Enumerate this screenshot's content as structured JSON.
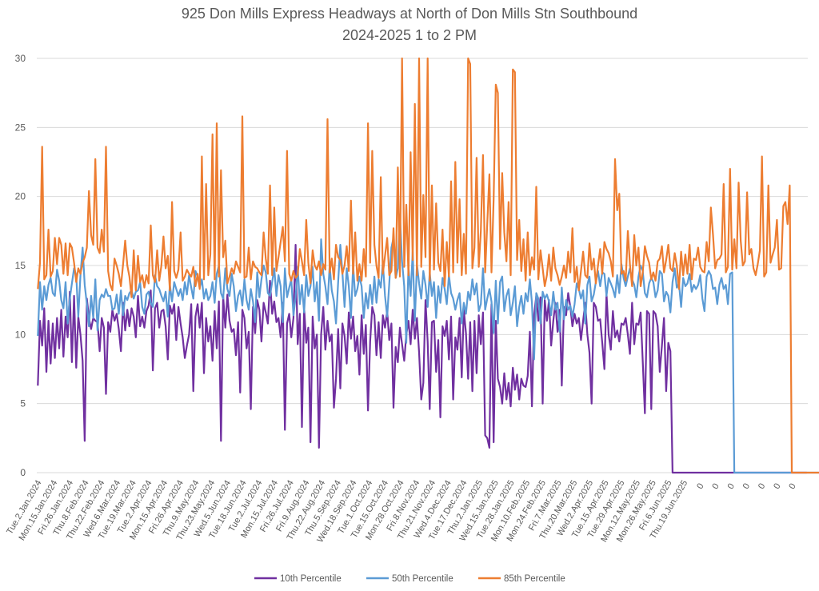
{
  "chart_data": {
    "type": "line",
    "title": "925 Don Mills Express Headways at North of Don Mills Stn Southbound",
    "subtitle": "2024-2025 1 to 2 PM",
    "xlabel": "",
    "ylabel": "",
    "ylim": [
      0,
      30
    ],
    "yticks": [
      0,
      5,
      10,
      15,
      20,
      25,
      30
    ],
    "grid": true,
    "legend_position": "bottom",
    "x_tick_labels": [
      "Tue.2.Jan.2024",
      "Mon.15.Jan.2024",
      "Fri.26.Jan.2024",
      "Thu.8.Feb.2024",
      "Thu.22.Feb.2024",
      "Wed.6.Mar.2024",
      "Tue.19.Mar.2024",
      "Tue.2.Apr.2024",
      "Mon.15.Apr.2024",
      "Fri.26.Apr.2024",
      "Thu.9.May.2024",
      "Thu.23.May.2024",
      "Wed.5.Jun.2024",
      "Tue.18.Jun.2024",
      "Tue.2.Jul.2024",
      "Mon.15.Jul.2024",
      "Fri.26.Jul.2024",
      "Fri.9.Aug.2024",
      "Thu.22.Aug.2024",
      "Thu.5.Sep.2024",
      "Wed.18.Sep.2024",
      "Tue.1.Oct.2024",
      "Tue.15.Oct.2024",
      "Mon.28.Oct.2024",
      "Fri.8.Nov.2024",
      "Thu.21.Nov.2024",
      "Wed.4.Dec.2024",
      "Tue.17.Dec.2024",
      "Thu.2.Jan.2025",
      "Wed.15.Jan.2025",
      "Tue.28.Jan.2025",
      "Mon.10.Feb.2025",
      "Mon.24.Feb.2025",
      "Fri.7.Mar.2025",
      "Thu.20.Mar.2025",
      "Wed.2.Apr.2025",
      "Tue.15.Apr.2025",
      "Tue.29.Apr.2025",
      "Mon.12.May.2025",
      "Mon.26.May.2025",
      "Fri.6.Jun.2025",
      "Thu.19.Jun.2025",
      "0",
      "0",
      "0",
      "0",
      "0",
      "0",
      "0"
    ],
    "series": [
      {
        "name": "10th Percentile",
        "color": "#7030a0",
        "values": [
          6.3,
          11,
          9.2,
          11.9,
          7.3,
          11,
          7.9,
          10.8,
          8.3,
          11.2,
          9,
          11.8,
          8.4,
          11.3,
          9.8,
          13.1,
          8,
          12.8,
          7.6,
          11.3,
          10,
          8.1,
          2.3,
          12.6,
          11.2,
          10.4,
          11.2,
          11,
          10.9,
          8.8,
          11.2,
          10.5,
          5.7,
          10.9,
          10.2,
          11.8,
          11,
          11.5,
          10.4,
          8.8,
          12.3,
          10.3,
          11.8,
          10.6,
          11.9,
          11.3,
          9.8,
          12.8,
          10.6,
          11.3,
          10.5,
          11.7,
          12.1,
          13.2,
          7.4,
          11.9,
          12.3,
          10.5,
          11.7,
          11.8,
          10.6,
          8.2,
          12.1,
          11.5,
          12.2,
          9.6,
          12,
          10.8,
          9.8,
          8.3,
          9.2,
          10,
          12.2,
          5.9,
          11.3,
          12.2,
          10.5,
          12.3,
          7.2,
          11.2,
          9.5,
          10.6,
          8.1,
          11.7,
          9,
          12.4,
          2.3,
          12.8,
          10.5,
          12.9,
          11,
          10.2,
          10.4,
          8.5,
          10.9,
          5.8,
          11.8,
          11.2,
          9,
          10.2,
          4.6,
          12,
          10.1,
          12.5,
          11.8,
          9.5,
          12.3,
          11.6,
          10.8,
          13.9,
          11.5,
          12.4,
          10.9,
          11.2,
          9.8,
          12.3,
          3.1,
          10.8,
          11.5,
          9.8,
          11.2,
          16.5,
          9.3,
          11.5,
          3.3,
          12,
          9.4,
          10.5,
          2.2,
          11.3,
          9,
          10,
          1.8,
          10,
          12,
          8.9,
          11,
          9.5,
          10,
          4.7,
          6.8,
          10.4,
          6.1,
          10.8,
          9.9,
          7.9,
          11.6,
          9.7,
          11.3,
          8.8,
          9.9,
          7.1,
          11.4,
          8.6,
          10.7,
          4.5,
          9.5,
          12,
          11.4,
          8.5,
          10.9,
          8.3,
          11.4,
          10.5,
          11.7,
          9.6,
          10.8,
          4.7,
          9.1,
          8,
          10.5,
          9.3,
          8.1,
          10,
          11,
          9.3,
          11.8,
          9.7,
          11.2,
          8.7,
          5.3,
          6.5,
          12.5,
          9.5,
          4.6,
          10.9,
          11,
          7.3,
          9.6,
          4,
          10.6,
          9.9,
          11,
          8.2,
          11.3,
          5.3,
          9.8,
          8.9,
          11.2,
          6.9,
          11.8,
          10.1,
          6.8,
          10.9,
          5.9,
          11,
          7.2,
          11.4,
          9.3,
          11.6,
          2.7,
          2.5,
          1.8,
          12.2,
          2.2,
          11,
          6.8,
          6.2,
          5,
          7.2,
          5.3,
          6.5,
          4.8,
          7.6,
          6,
          7.1,
          5.3,
          6.8,
          6.3,
          6.2,
          7,
          10.2,
          4.8,
          11.4,
          12.8,
          11,
          12.7,
          5,
          12.5,
          11,
          12.5,
          9.2,
          11,
          12.3,
          10.2,
          11.8,
          6.3,
          12,
          11.4,
          13,
          12,
          10.6,
          11.5,
          10.8,
          11.2,
          9.6,
          11,
          12.3,
          10,
          8.7,
          5,
          12.3,
          12,
          11,
          11.1,
          9.4,
          7.5,
          13,
          10,
          8.9,
          11.7,
          9.8,
          10.3,
          9.5,
          10.8,
          10.7,
          11.2,
          10,
          8.6,
          12.3,
          9.3,
          10.8,
          10.7,
          11.6,
          8.1,
          4.3,
          11.7,
          11.5,
          4.6,
          11.7,
          11.5,
          10.6,
          7.3,
          9.2,
          11.2,
          5.9,
          9.4,
          8.8,
          0,
          0,
          0,
          0,
          0,
          0,
          0,
          0,
          0,
          0,
          0,
          0,
          0,
          0,
          0,
          0,
          0,
          0,
          0,
          0,
          0,
          0,
          0,
          0,
          0,
          0,
          0,
          0,
          0,
          0,
          0,
          0,
          0,
          0,
          0,
          0,
          0,
          0,
          0,
          0,
          0,
          0,
          0,
          0,
          0,
          0,
          0,
          0,
          0,
          0,
          0,
          0,
          0,
          0,
          0,
          0,
          0,
          0,
          0,
          0,
          0,
          0,
          0,
          0
        ]
      },
      {
        "name": "50th Percentile",
        "color": "#5b9bd5",
        "values": [
          9.9,
          13.8,
          11.8,
          13.5,
          12.5,
          13.6,
          14.1,
          13,
          12.8,
          14.7,
          13.9,
          12.5,
          11.9,
          13.8,
          10.8,
          12.6,
          13.7,
          14.8,
          14.3,
          11.3,
          14.3,
          16.3,
          13.6,
          12.2,
          10.6,
          12.8,
          11.2,
          14,
          10.3,
          12.5,
          12.9,
          12.7,
          13.3,
          12.8,
          12.8,
          11.8,
          11.9,
          12.9,
          11.5,
          13.2,
          11.4,
          12.8,
          12.5,
          13,
          13.2,
          12.6,
          13.1,
          13.2,
          13.8,
          12,
          11.5,
          12.9,
          13.1,
          12.3,
          12,
          14.3,
          13.5,
          13.3,
          12.8,
          12.4,
          13.1,
          11.3,
          13.6,
          12.4,
          13.8,
          13.3,
          12.8,
          13.3,
          12.5,
          13.8,
          12.9,
          14.3,
          13.4,
          12.6,
          14.6,
          14.2,
          13.4,
          14,
          12.6,
          13.3,
          12.5,
          12.8,
          13.8,
          12.3,
          14.4,
          15,
          13,
          12.6,
          14.8,
          13.3,
          12.8,
          14.4,
          13.5,
          11.7,
          12.8,
          13.2,
          12.1,
          14,
          12.5,
          11.8,
          13.3,
          12.4,
          10.9,
          14.5,
          12.7,
          14,
          15,
          14.5,
          13,
          12.8,
          13.8,
          14.8,
          12.8,
          14.3,
          13.5,
          10.9,
          14.8,
          12.7,
          13.4,
          14,
          11.4,
          12.7,
          14.9,
          12.2,
          13.6,
          11.6,
          14.3,
          12.8,
          13.5,
          14.9,
          12.4,
          13.8,
          11,
          16.9,
          14.4,
          13.5,
          12.2,
          15,
          13.2,
          12.4,
          10.8,
          13.8,
          16.5,
          14.5,
          12,
          14.8,
          13.5,
          11.2,
          15,
          12.8,
          13.3,
          14.2,
          13.5,
          11.2,
          13,
          11.9,
          13.6,
          12.2,
          14.2,
          12.3,
          14,
          13.4,
          15.2,
          12.8,
          11.3,
          13.7,
          16.3,
          17,
          14.1,
          14.8,
          18.7,
          15.3,
          13.5,
          9.4,
          14.9,
          12.8,
          16,
          11,
          15.1,
          13.7,
          12.6,
          14.6,
          13.6,
          12,
          14.5,
          12.8,
          13.8,
          11.2,
          13.5,
          12.3,
          14.1,
          13.3,
          12.2,
          14.3,
          13,
          12.6,
          11.8,
          12.5,
          13,
          10.8,
          12.3,
          11.5,
          13.1,
          12.5,
          14,
          12.9,
          13.7,
          11.7,
          12.2,
          14.8,
          11.8,
          12.6,
          13.3,
          12.4,
          10.1,
          13.9,
          10.8,
          13.8,
          14.2,
          11.7,
          12.8,
          13.3,
          11.4,
          12.3,
          13.5,
          10.6,
          12,
          12.8,
          11.5,
          13,
          12.4,
          14,
          12.3,
          8.2,
          13,
          12.6,
          10.8,
          13.1,
          12.6,
          12.9,
          12.4,
          11.4,
          13.1,
          11.8,
          12.3,
          10.2,
          13.4,
          11.1,
          12.5,
          11.8,
          12.1,
          11.3,
          12.2,
          13.7,
          13.3,
          12.6,
          13.2,
          10.8,
          13.6,
          14.2,
          12.4,
          12.9,
          13.8,
          14.6,
          13.5,
          14.5,
          14.4,
          12.8,
          14.1,
          13.7,
          13.3,
          12.7,
          14.3,
          13,
          15.1,
          14.1,
          13.5,
          14.2,
          14.8,
          14,
          13.6,
          12.7,
          14.2,
          15,
          14.6,
          13,
          12.7,
          13.7,
          14.1,
          13.8,
          12.7,
          13.2,
          14.6,
          14.4,
          12.4,
          13.1,
          12.8,
          11.6,
          13.8,
          14.8,
          13.4,
          13.7,
          12,
          14.1,
          13.5,
          13.7,
          14.4,
          13.1,
          13.6,
          13.3,
          13.6,
          14.3,
          12.6,
          11.7,
          14.2,
          14.6,
          14.3,
          13.3,
          13.4,
          12.2,
          13.6,
          14.1,
          13.3,
          13.6,
          12.2,
          14.4,
          14.5,
          0,
          0,
          0,
          0,
          0,
          0,
          0,
          0,
          0,
          0,
          0,
          0,
          0,
          0,
          0,
          0,
          0,
          0,
          0,
          0,
          0,
          0,
          0,
          0,
          0,
          0,
          0,
          0,
          0,
          0,
          0,
          0,
          0,
          0,
          0,
          0,
          0,
          0,
          0,
          0,
          0,
          0,
          0,
          0,
          0,
          0,
          0,
          0,
          0,
          0,
          0,
          0,
          0,
          0,
          0,
          0,
          0,
          0,
          0,
          0,
          0,
          0,
          0,
          0
        ]
      },
      {
        "name": "85th Percentile",
        "color": "#ed7d31",
        "values": [
          13.3,
          15.2,
          23.6,
          14,
          14.3,
          17.6,
          14.2,
          14.6,
          17,
          15.1,
          17,
          16.5,
          14.4,
          16.6,
          14.3,
          16.6,
          16.3,
          15.2,
          13.8,
          14.8,
          14.4,
          15.2,
          15.6,
          16.3,
          20.4,
          17.2,
          16.5,
          22.7,
          16.3,
          15.9,
          17.6,
          16,
          23.6,
          14.6,
          13.6,
          13.2,
          15.5,
          15,
          14.4,
          13.5,
          15.1,
          16.8,
          15,
          14.2,
          12.7,
          16.1,
          13.2,
          15.7,
          13.8,
          14.3,
          13.4,
          14.3,
          13.7,
          17.9,
          14.3,
          13.8,
          16.1,
          13.9,
          15,
          17.1,
          14.8,
          15.7,
          13.2,
          19.6,
          14.6,
          14.1,
          14.7,
          17.4,
          13.9,
          14.2,
          14.7,
          14.4,
          14.2,
          14.9,
          13.5,
          14.4,
          13.3,
          22.9,
          14,
          20.9,
          14.3,
          15.8,
          24.5,
          14,
          25.3,
          14.2,
          21.9,
          15.6,
          16.8,
          13.7,
          14.2,
          14.8,
          14.4,
          15.3,
          14.9,
          14.5,
          25.8,
          14.1,
          14.2,
          16.3,
          14,
          15.3,
          14.9,
          14.8,
          14.5,
          14.3,
          17.4,
          15.5,
          14.4,
          20.8,
          14.3,
          19.2,
          14.6,
          15.6,
          16.7,
          17.8,
          15.3,
          23.3,
          14.4,
          13.9,
          14.6,
          14.1,
          14.3,
          16.2,
          15.3,
          14.3,
          18.3,
          15.2,
          13.7,
          16.1,
          15,
          14.7,
          15.3,
          14.3,
          15.1,
          14.7,
          25.6,
          14.5,
          15.5,
          14,
          16.5,
          15.6,
          15.4,
          14.4,
          15,
          16.4,
          14.6,
          19.7,
          14.4,
          17.4,
          13.9,
          15.1,
          13.9,
          16.2,
          14.2,
          25.3,
          15.2,
          23.3,
          16.5,
          15,
          14.1,
          21.4,
          14.4,
          15.7,
          17,
          14.3,
          14.6,
          17.7,
          14.1,
          22.1,
          14.2,
          30,
          14.9,
          19.4,
          14.3,
          23.2,
          15.4,
          26.7,
          14.3,
          30,
          14.9,
          20.1,
          15.6,
          30,
          13.9,
          20.8,
          14.7,
          19.5,
          15.2,
          14.6,
          17.6,
          13.5,
          16.7,
          14.2,
          21.1,
          14.5,
          22.5,
          15.2,
          19.8,
          14.3,
          17.3,
          14.4,
          30,
          29.6,
          14.8,
          16.3,
          22.8,
          14.9,
          17.5,
          23,
          14.5,
          18,
          21.6,
          14.5,
          19.8,
          28.1,
          27.5,
          16.2,
          21.7,
          17.4,
          15.3,
          19.6,
          14.3,
          29.2,
          29,
          15.4,
          18.3,
          14.6,
          16.9,
          13.9,
          17.4,
          14.3,
          15.6,
          14.7,
          20.7,
          14,
          16.1,
          14.8,
          13.5,
          14.3,
          15.8,
          13.9,
          16.3,
          14.8,
          14.3,
          13.6,
          14.2,
          15,
          14.1,
          16,
          14.5,
          17.7,
          13.8,
          14.9,
          13.2,
          14.6,
          16,
          14.3,
          14.1,
          16.6,
          14.7,
          15.5,
          13.7,
          15,
          16.2,
          14.4,
          16.7,
          16.2,
          15.9,
          15.3,
          14.2,
          22.7,
          19,
          20.2,
          14.4,
          14.6,
          13.9,
          17.5,
          15.1,
          13.5,
          17.2,
          15,
          16.3,
          13.5,
          14.5,
          16.4,
          15.7,
          15.2,
          14,
          14.5,
          13.9,
          15.3,
          15.5,
          16.4,
          14.5,
          15.4,
          16.5,
          14.8,
          14.6,
          15.9,
          15,
          13.3,
          16,
          14.3,
          15.8,
          14.4,
          16.5,
          14,
          15.5,
          15.4,
          16.3,
          14.9,
          14.6,
          14.5,
          16.7,
          15.3,
          19.2,
          17.2,
          14.8,
          15.4,
          15.5,
          15.8,
          20.9,
          14.5,
          14.9,
          22,
          14.7,
          16.9,
          14.8,
          21,
          16.8,
          15,
          15.3,
          20.3,
          15.8,
          16.2,
          14.8,
          14.3,
          15.1,
          16.1,
          22.9,
          14.2,
          14.5,
          20.8,
          15.2,
          15.8,
          16.3,
          18.3,
          14.7,
          14.8,
          19.3,
          19.6,
          18,
          20.8,
          0,
          0,
          0,
          0,
          0,
          0,
          0,
          0,
          0,
          0,
          0,
          0,
          0,
          0,
          0,
          0,
          0,
          0,
          0,
          0,
          0,
          0,
          0,
          0,
          0,
          0,
          0,
          0,
          0,
          0,
          0,
          0,
          0,
          0,
          0,
          0,
          0,
          0,
          0,
          0,
          0,
          0,
          0,
          0,
          0,
          0,
          0,
          0,
          0,
          0,
          0,
          0,
          0,
          0,
          0,
          0,
          0,
          0,
          0,
          0,
          0,
          0,
          0,
          0
        ]
      }
    ]
  }
}
